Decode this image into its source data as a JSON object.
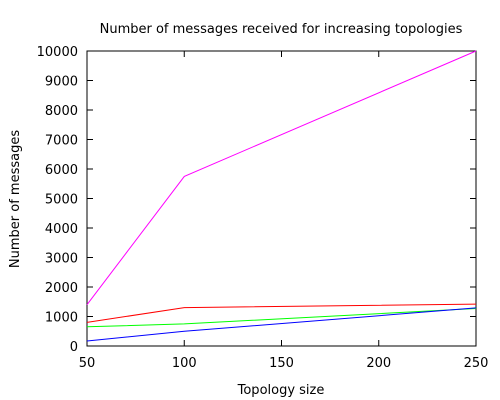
{
  "chart_data": {
    "type": "line",
    "title": "Number of messages received for increasing topologies",
    "xlabel": "Topology size",
    "ylabel": "Number of messages",
    "xlim": [
      50,
      250
    ],
    "ylim": [
      0,
      10000
    ],
    "x_ticks": [
      50,
      100,
      150,
      200,
      250
    ],
    "y_ticks": [
      0,
      1000,
      2000,
      3000,
      4000,
      5000,
      6000,
      7000,
      8000,
      9000,
      10000
    ],
    "grid": false,
    "legend": "none",
    "series": [
      {
        "color": "#ff00ff",
        "x": [
          50,
          100,
          250
        ],
        "y": [
          1400,
          5750,
          10000
        ]
      },
      {
        "color": "#ff0000",
        "x": [
          50,
          100,
          250
        ],
        "y": [
          800,
          1300,
          1420
        ]
      },
      {
        "color": "#00ff00",
        "x": [
          50,
          100,
          250
        ],
        "y": [
          650,
          750,
          1270
        ]
      },
      {
        "color": "#0000ff",
        "x": [
          50,
          100,
          250
        ],
        "y": [
          170,
          500,
          1290
        ]
      }
    ]
  }
}
